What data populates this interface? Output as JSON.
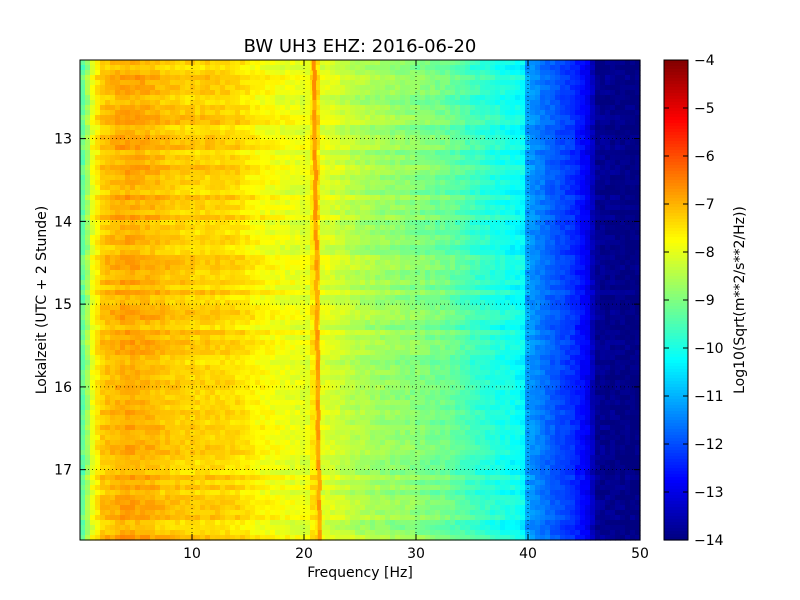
{
  "chart_data": {
    "type": "heatmap",
    "title": "BW UH3 EHZ: 2016-06-20",
    "xlabel": "Frequency [Hz]",
    "ylabel": "Lokalzeit (UTC + 2 Stunde)",
    "xlim": [
      0,
      50
    ],
    "ylim": [
      12.05,
      17.85
    ],
    "y_inverted": true,
    "x_ticks": [
      10,
      20,
      30,
      40,
      50
    ],
    "x_tick_labels": [
      "10",
      "20",
      "30",
      "40",
      "50"
    ],
    "y_ticks": [
      13,
      14,
      15,
      16,
      17
    ],
    "y_tick_labels": [
      "13",
      "14",
      "15",
      "16",
      "17"
    ],
    "grid": true,
    "colormap": "jet",
    "colorbar": {
      "label": "Log10(Sqrt(m**2/s**2/Hz))",
      "range": [
        -14,
        -4
      ],
      "ticks": [
        -4,
        -5,
        -6,
        -7,
        -8,
        -9,
        -10,
        -11,
        -12,
        -13,
        -14
      ],
      "tick_labels": [
        "−4",
        "−5",
        "−6",
        "−7",
        "−8",
        "−9",
        "−10",
        "−11",
        "−12",
        "−13",
        "−14"
      ]
    },
    "frequency_profile": [
      {
        "f": 0.0,
        "v": -9.5
      },
      {
        "f": 0.5,
        "v": -9.0
      },
      {
        "f": 1.0,
        "v": -8.0
      },
      {
        "f": 2.0,
        "v": -7.2
      },
      {
        "f": 4.0,
        "v": -6.9
      },
      {
        "f": 6.0,
        "v": -7.0
      },
      {
        "f": 8.0,
        "v": -7.2
      },
      {
        "f": 10.0,
        "v": -7.3
      },
      {
        "f": 12.0,
        "v": -7.3
      },
      {
        "f": 14.0,
        "v": -7.4
      },
      {
        "f": 16.0,
        "v": -7.7
      },
      {
        "f": 18.0,
        "v": -7.9
      },
      {
        "f": 20.0,
        "v": -8.0
      },
      {
        "f": 20.6,
        "v": -8.0
      },
      {
        "f": 21.0,
        "v": -6.8
      },
      {
        "f": 21.4,
        "v": -8.0
      },
      {
        "f": 23.0,
        "v": -8.2
      },
      {
        "f": 25.0,
        "v": -8.5
      },
      {
        "f": 27.0,
        "v": -8.7
      },
      {
        "f": 30.0,
        "v": -8.9
      },
      {
        "f": 33.0,
        "v": -9.2
      },
      {
        "f": 35.0,
        "v": -9.6
      },
      {
        "f": 37.0,
        "v": -9.9
      },
      {
        "f": 39.5,
        "v": -10.2
      },
      {
        "f": 40.0,
        "v": -11.2
      },
      {
        "f": 42.0,
        "v": -11.8
      },
      {
        "f": 44.0,
        "v": -12.3
      },
      {
        "f": 45.5,
        "v": -13.0
      },
      {
        "f": 46.0,
        "v": -13.8
      },
      {
        "f": 50.0,
        "v": -14.0
      }
    ],
    "tonal_line": {
      "start_freq": 20.9,
      "end_freq": 21.4,
      "value": -6.8
    }
  }
}
